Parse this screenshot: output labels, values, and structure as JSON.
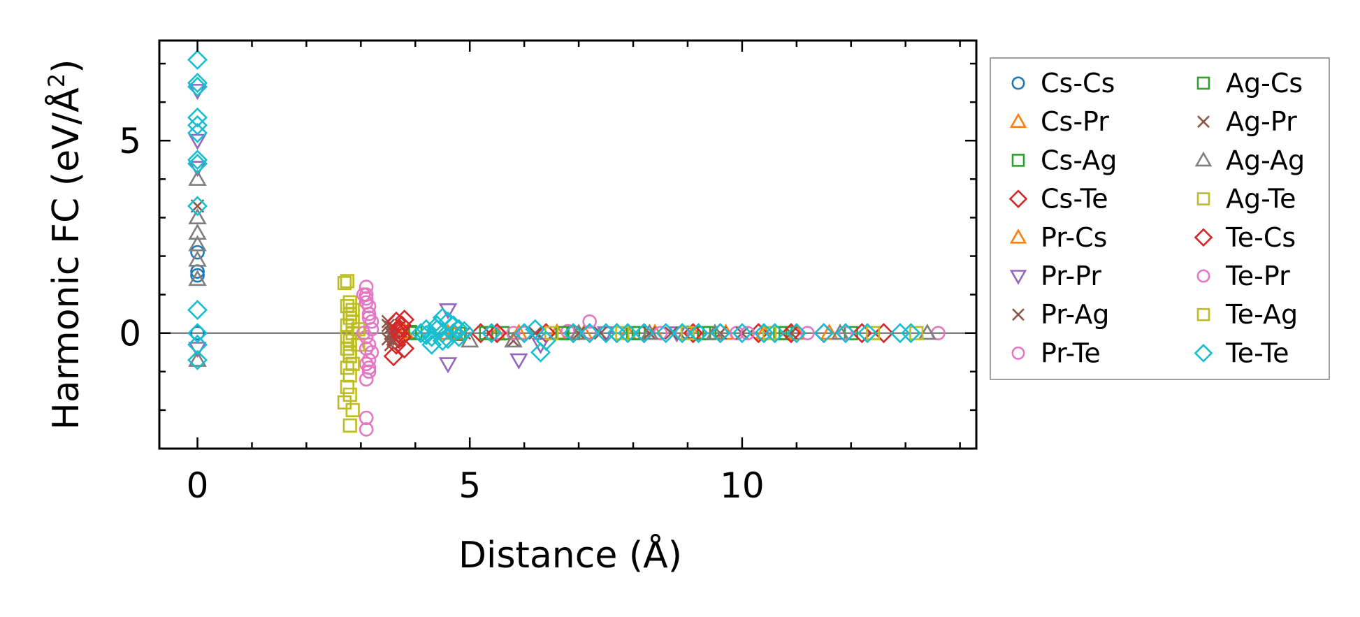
{
  "chart_data": {
    "type": "scatter",
    "xlabel": "Distance (Å)",
    "ylabel": "Harmonic FC (eV/Å²)",
    "ylabel_base": "Harmonic FC (eV/Å",
    "ylabel_sup": "2",
    "ylabel_end": ")",
    "xlim": [
      -0.7,
      14.3
    ],
    "ylim": [
      -3.0,
      7.6
    ],
    "xticks": [
      0,
      5,
      10
    ],
    "yticks": [
      0,
      5
    ],
    "xtick_labels": [
      "0",
      "5",
      "10"
    ],
    "ytick_labels": [
      "0",
      "5"
    ],
    "x_minor_step": 1,
    "y_minor_step": 1,
    "zero_line": true,
    "grid": false,
    "legend_placement": "outside-right",
    "legend_columns": 2,
    "series": [
      {
        "name": "Cs-Cs",
        "marker": "circle",
        "color": "#1f77b4",
        "x": [
          0,
          0,
          0,
          0,
          7.2,
          9.0
        ],
        "y": [
          1.5,
          1.6,
          2.1,
          0.0,
          0.02,
          0.01
        ]
      },
      {
        "name": "Cs-Pr",
        "marker": "triangle-up",
        "color": "#ff7f0e",
        "x": [
          3.8,
          4.6,
          5.5,
          6.6,
          7.9,
          9.1,
          10.4,
          11.6
        ],
        "y": [
          0.05,
          0.0,
          -0.02,
          0.01,
          0.0,
          0.0,
          0.0,
          0.0
        ]
      },
      {
        "name": "Cs-Ag",
        "marker": "square",
        "color": "#2ca02c",
        "x": [
          3.9,
          4.8,
          5.6,
          6.9,
          8.1,
          9.3,
          10.8,
          12.0
        ],
        "y": [
          0.03,
          -0.02,
          0.0,
          0.0,
          0.0,
          0.0,
          0.0,
          0.0
        ]
      },
      {
        "name": "Cs-Te",
        "marker": "diamond",
        "color": "#d62728",
        "x": [
          3.6,
          3.65,
          3.7,
          3.75,
          3.8,
          3.7,
          3.72,
          5.2,
          6.4,
          7.7,
          9.1,
          10.3,
          11.5,
          12.6
        ],
        "y": [
          -0.6,
          -0.3,
          0.0,
          0.2,
          0.35,
          -0.15,
          0.1,
          0.0,
          0.0,
          0.0,
          0.0,
          0.0,
          0.0,
          0.0
        ]
      },
      {
        "name": "Pr-Cs",
        "marker": "triangle-up",
        "color": "#ff7f0e",
        "x": [
          3.8,
          4.7,
          5.9,
          7.1,
          8.4,
          9.7,
          11.0
        ],
        "y": [
          0.02,
          0.0,
          0.0,
          0.0,
          0.0,
          0.0,
          0.0
        ]
      },
      {
        "name": "Pr-Pr",
        "marker": "triangle-down",
        "color": "#9467bd",
        "x": [
          0,
          0,
          0,
          0,
          4.6,
          4.6,
          5.9,
          6.3,
          7.5,
          8.8
        ],
        "y": [
          6.3,
          5.0,
          4.3,
          -0.4,
          0.6,
          -0.8,
          -0.7,
          -0.3,
          0.0,
          0.0
        ]
      },
      {
        "name": "Pr-Ag",
        "marker": "x",
        "color": "#8c564b",
        "x": [
          0,
          3.5,
          3.55,
          3.6,
          3.5,
          3.55,
          3.6,
          5.8,
          7.0,
          8.3,
          9.6,
          10.9
        ],
        "y": [
          3.3,
          0.3,
          0.15,
          0.0,
          -0.15,
          -0.3,
          -0.1,
          -0.2,
          0.0,
          0.0,
          0.0,
          0.0
        ]
      },
      {
        "name": "Pr-Te",
        "marker": "circle",
        "color": "#e377c2",
        "x": [
          3.1,
          3.1,
          3.1,
          3.15,
          3.15,
          3.2,
          3.2,
          3.1,
          3.15,
          3.2,
          3.1,
          3.15,
          3.1,
          3.15,
          5.5,
          5.8,
          6.8,
          7.2,
          8.5,
          9.9,
          11.2,
          13.6
        ],
        "y": [
          1.2,
          1.0,
          0.9,
          0.7,
          0.5,
          0.3,
          0.1,
          -0.1,
          -0.3,
          -0.5,
          -0.8,
          -1.0,
          -1.2,
          -0.9,
          0.0,
          0.0,
          0.05,
          0.3,
          0.0,
          0.0,
          0.0,
          0.0
        ]
      },
      {
        "name": "Ag-Cs",
        "marker": "square",
        "color": "#2ca02c",
        "x": [
          4.0,
          5.3,
          6.7,
          8.0,
          9.4,
          10.7
        ],
        "y": [
          0.0,
          0.0,
          0.0,
          0.0,
          0.0,
          0.0
        ]
      },
      {
        "name": "Ag-Pr",
        "marker": "x",
        "color": "#8c564b",
        "x": [
          3.5,
          3.55,
          3.6,
          4.9,
          6.2,
          7.4,
          8.7,
          10.0
        ],
        "y": [
          0.2,
          0.0,
          -0.2,
          0.0,
          0.0,
          0.0,
          0.0,
          0.0
        ]
      },
      {
        "name": "Ag-Ag",
        "marker": "triangle-up",
        "color": "#7f7f7f",
        "x": [
          0,
          0,
          0,
          0,
          0,
          0,
          0,
          5.0,
          5.8,
          7.0,
          8.3,
          9.5,
          11.8,
          13.4
        ],
        "y": [
          4.0,
          3.0,
          2.6,
          2.3,
          1.9,
          1.4,
          -0.7,
          -0.2,
          -0.2,
          0.0,
          0.0,
          0.0,
          0.0,
          0.0
        ]
      },
      {
        "name": "Ag-Te",
        "marker": "square",
        "color": "#bcbd22",
        "x": [
          2.75,
          2.8,
          2.85,
          2.8,
          2.75,
          2.85,
          2.8,
          2.75,
          2.8,
          2.85,
          2.8,
          2.75,
          2.8,
          2.85,
          2.95,
          2.95
        ],
        "y": [
          1.35,
          0.8,
          0.6,
          0.4,
          0.2,
          0.0,
          -0.2,
          -0.4,
          -0.6,
          -0.8,
          -1.1,
          -1.4,
          -1.6,
          -2.0,
          0.1,
          -0.3
        ]
      },
      {
        "name": "Te-Cs",
        "marker": "diamond",
        "color": "#d62728",
        "x": [
          3.65,
          3.7,
          3.75,
          3.8,
          3.7,
          3.75,
          5.5,
          6.9,
          8.2,
          9.6,
          10.9,
          12.2
        ],
        "y": [
          0.3,
          0.1,
          -0.1,
          -0.4,
          0.0,
          0.2,
          0.0,
          0.0,
          0.0,
          0.0,
          0.0,
          0.0
        ]
      },
      {
        "name": "Te-Pr",
        "marker": "circle",
        "color": "#e377c2",
        "x": [
          3.05,
          3.1,
          3.15,
          3.05,
          3.1,
          3.15,
          3.1,
          3.1,
          6.0,
          7.2,
          8.9,
          10.1,
          11.9
        ],
        "y": [
          1.0,
          0.8,
          0.4,
          0.0,
          -0.4,
          -0.7,
          -2.2,
          -2.5,
          0.0,
          0.0,
          0.0,
          0.0,
          0.0
        ]
      },
      {
        "name": "Te-Ag",
        "marker": "square",
        "color": "#bcbd22",
        "x": [
          2.7,
          2.75,
          2.8,
          2.85,
          2.75,
          2.8,
          2.75,
          2.7,
          2.8,
          6.5,
          7.8,
          9.0,
          10.5,
          12.4,
          13.2
        ],
        "y": [
          1.3,
          0.7,
          0.5,
          0.3,
          -0.1,
          -0.5,
          -0.9,
          -1.8,
          -2.4,
          0.0,
          0.0,
          0.0,
          0.0,
          0.0,
          0.0
        ]
      },
      {
        "name": "Te-Te",
        "marker": "diamond",
        "color": "#17becf",
        "x": [
          0,
          0,
          0,
          0,
          0,
          0,
          0,
          0,
          0,
          0,
          0,
          0,
          0,
          4.1,
          4.2,
          4.3,
          4.4,
          4.5,
          4.6,
          4.7,
          4.8,
          4.9,
          4.3,
          4.5,
          4.7,
          4.4,
          4.6,
          4.5,
          4.2,
          4.8,
          5.4,
          6.0,
          6.2,
          6.4,
          6.3,
          6.9,
          7.2,
          7.5,
          7.7,
          7.9,
          8.2,
          8.6,
          8.9,
          9.2,
          9.6,
          10.0,
          10.4,
          10.6,
          11.0,
          11.5,
          11.9,
          12.3,
          12.9,
          13.1
        ],
        "y": [
          7.1,
          6.5,
          6.4,
          5.6,
          5.4,
          5.2,
          4.5,
          4.4,
          3.3,
          0.6,
          0.0,
          -0.3,
          -0.7,
          0.0,
          0.1,
          -0.1,
          0.2,
          -0.2,
          0.3,
          0.0,
          -0.1,
          0.05,
          -0.3,
          0.4,
          0.2,
          0.1,
          -0.15,
          0.0,
          -0.05,
          0.1,
          0.0,
          0.0,
          0.1,
          -0.2,
          -0.5,
          0.0,
          0.0,
          0.0,
          0.0,
          0.0,
          0.0,
          0.0,
          0.0,
          0.0,
          0.0,
          0.0,
          0.0,
          0.0,
          0.0,
          0.0,
          0.0,
          0.0,
          0.0,
          0.0
        ]
      }
    ]
  }
}
